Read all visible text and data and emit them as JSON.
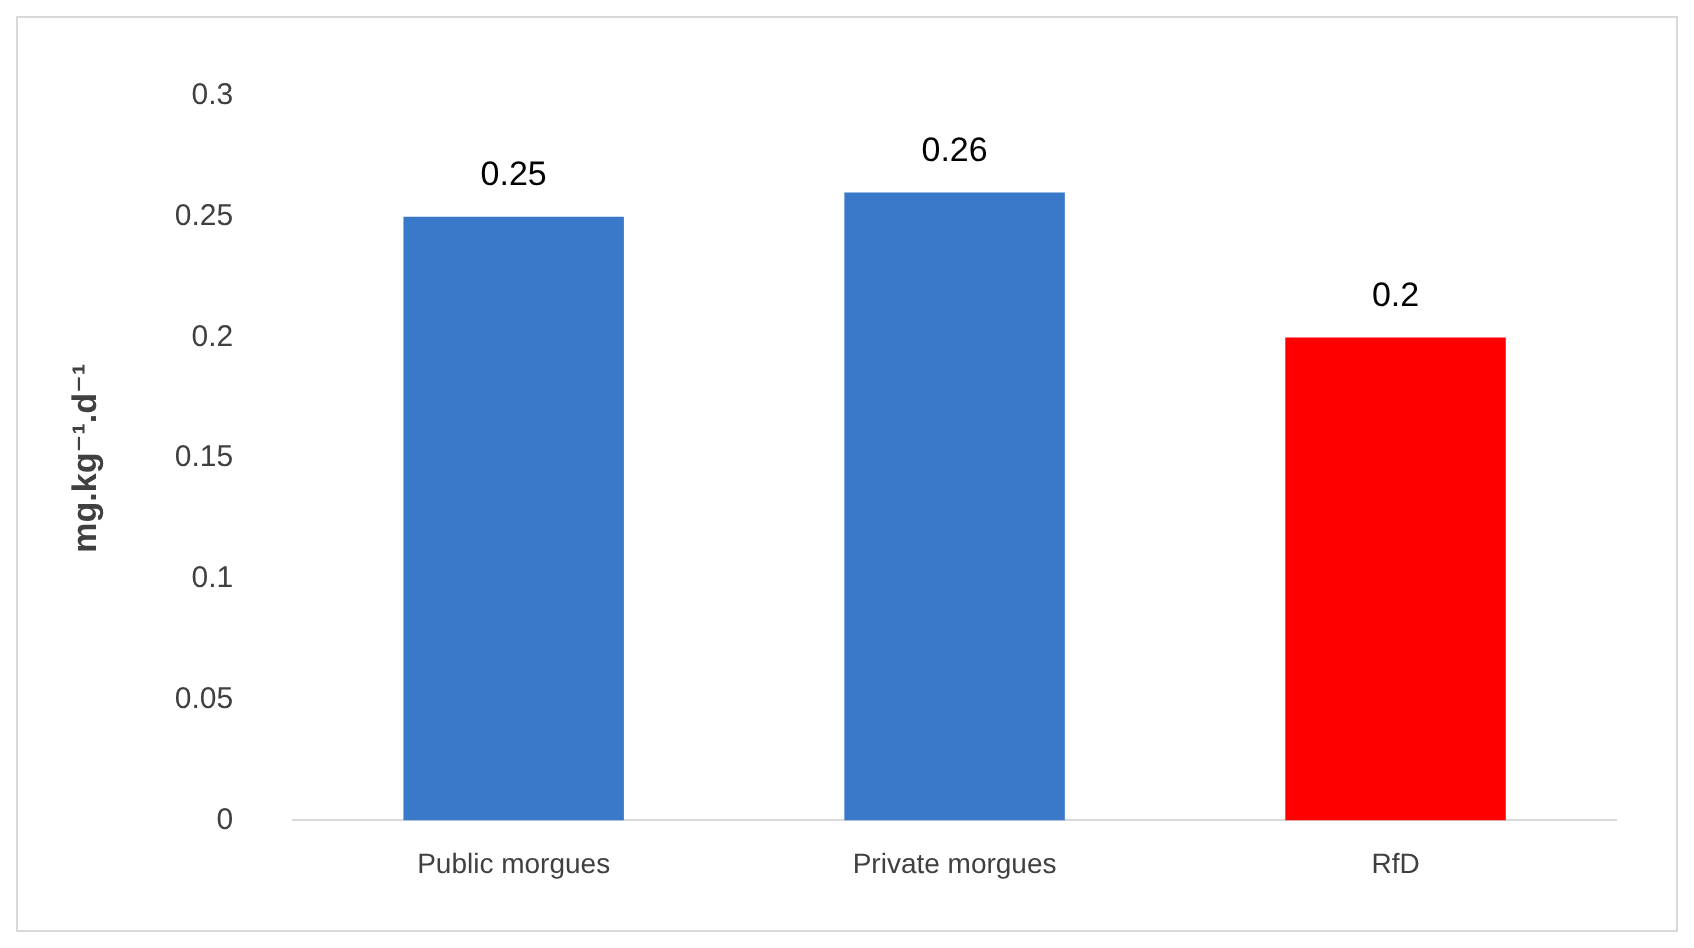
{
  "chart_data": {
    "type": "bar",
    "ylabel": "mg.kg⁻¹.d⁻¹",
    "categories": [
      "Public morgues",
      "Private morgues",
      "RfD"
    ],
    "values": [
      0.25,
      0.26,
      0.2
    ],
    "colors": [
      "#3a78c9",
      "#3a78c9",
      "#ff0000"
    ],
    "ylim": [
      0,
      0.3
    ],
    "yticks": [
      0,
      0.05,
      0.1,
      0.15,
      0.2,
      0.25,
      0.3
    ],
    "grid": false,
    "legend": false,
    "data_labels": true
  }
}
